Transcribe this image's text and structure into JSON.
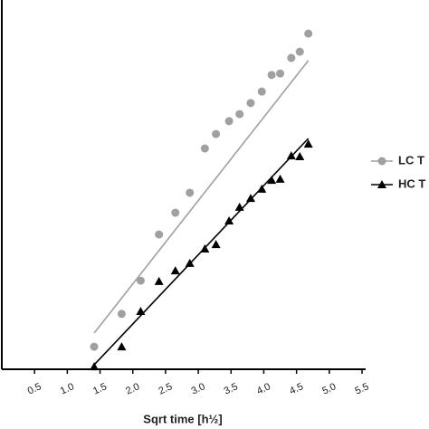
{
  "chart_data": {
    "type": "scatter",
    "xlabel": "Sqrt time [h½]",
    "xlim": [
      0,
      5.5
    ],
    "ylim": [
      0,
      100
    ],
    "xticks": [
      0.5,
      {
        "value": 1,
        "label": "1.0"
      },
      1.5,
      {
        "value": 2,
        "label": "2.0"
      },
      2.5,
      {
        "value": 3,
        "label": "3.0"
      },
      3.5,
      {
        "value": 4,
        "label": "4.0"
      },
      4.5,
      {
        "value": 5,
        "label": "5.0"
      },
      5.5
    ],
    "series": [
      {
        "name": "LC T",
        "color": "#a0a0a0",
        "marker": "circle",
        "x": [
          1.41,
          1.83,
          2.12,
          2.4,
          2.65,
          2.87,
          3.1,
          3.27,
          3.47,
          3.63,
          3.8,
          3.97,
          4.12,
          4.25,
          4.42,
          4.55,
          4.68
        ],
        "values": [
          6.1,
          15.0,
          24.0,
          36.5,
          42.4,
          47.8,
          59.8,
          63.7,
          67.2,
          69.1,
          72.1,
          75.2,
          79.7,
          80.1,
          84.3,
          86.0,
          90.9
        ],
        "fit": {
          "x": [
            1.41,
            4.68
          ],
          "values": [
            9.8,
            83.6
          ]
        }
      },
      {
        "name": "HC T",
        "color": "#000000",
        "marker": "triangle",
        "x": [
          1.41,
          1.83,
          2.12,
          2.4,
          2.65,
          2.87,
          3.1,
          3.27,
          3.47,
          3.63,
          3.8,
          3.97,
          4.12,
          4.25,
          4.42,
          4.55,
          4.68
        ],
        "values": [
          0.7,
          6.1,
          15.7,
          23.8,
          26.7,
          28.7,
          32.6,
          33.8,
          40.2,
          43.9,
          46.3,
          48.8,
          51.2,
          51.5,
          57.8,
          57.6,
          61.0
        ],
        "fit": {
          "x": [
            1.41,
            4.68
          ],
          "values": [
            1.2,
            62.5
          ]
        }
      }
    ]
  }
}
